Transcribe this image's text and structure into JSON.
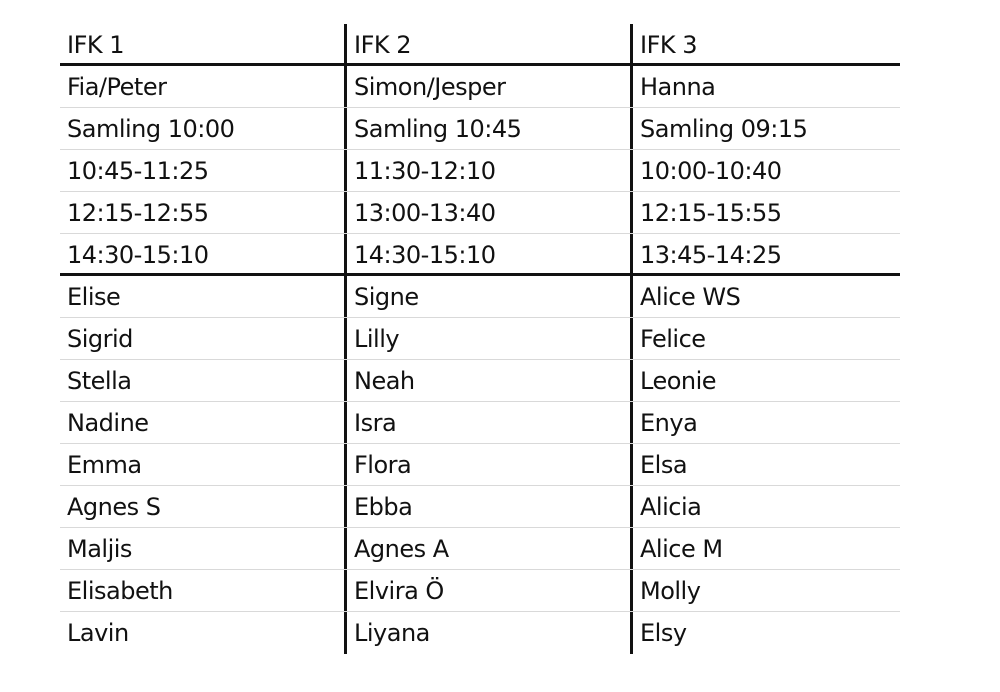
{
  "table": {
    "header": [
      "IFK 1",
      "IFK 2",
      "IFK 3"
    ],
    "schedule_rows": [
      [
        "Fia/Peter",
        "Simon/Jesper",
        "Hanna"
      ],
      [
        "Samling 10:00",
        "Samling 10:45",
        "Samling 09:15"
      ],
      [
        "10:45-11:25",
        "11:30-12:10",
        "10:00-10:40"
      ],
      [
        "12:15-12:55",
        "13:00-13:40",
        "12:15-15:55"
      ],
      [
        "14:30-15:10",
        "14:30-15:10",
        "13:45-14:25"
      ]
    ],
    "player_rows": [
      [
        "Elise",
        "Signe",
        "Alice WS"
      ],
      [
        "Sigrid",
        "Lilly",
        "Felice"
      ],
      [
        "Stella",
        "Neah",
        "Leonie"
      ],
      [
        "Nadine",
        "Isra",
        "Enya"
      ],
      [
        "Emma",
        "Flora",
        "Elsa"
      ],
      [
        "Agnes S",
        "Ebba",
        "Alicia"
      ],
      [
        "Maljis",
        "Agnes A",
        "Alice M"
      ],
      [
        "Elisabeth",
        "Elvira Ö",
        "Molly"
      ],
      [
        "Lavin",
        "Liyana",
        "Elsy"
      ]
    ]
  }
}
